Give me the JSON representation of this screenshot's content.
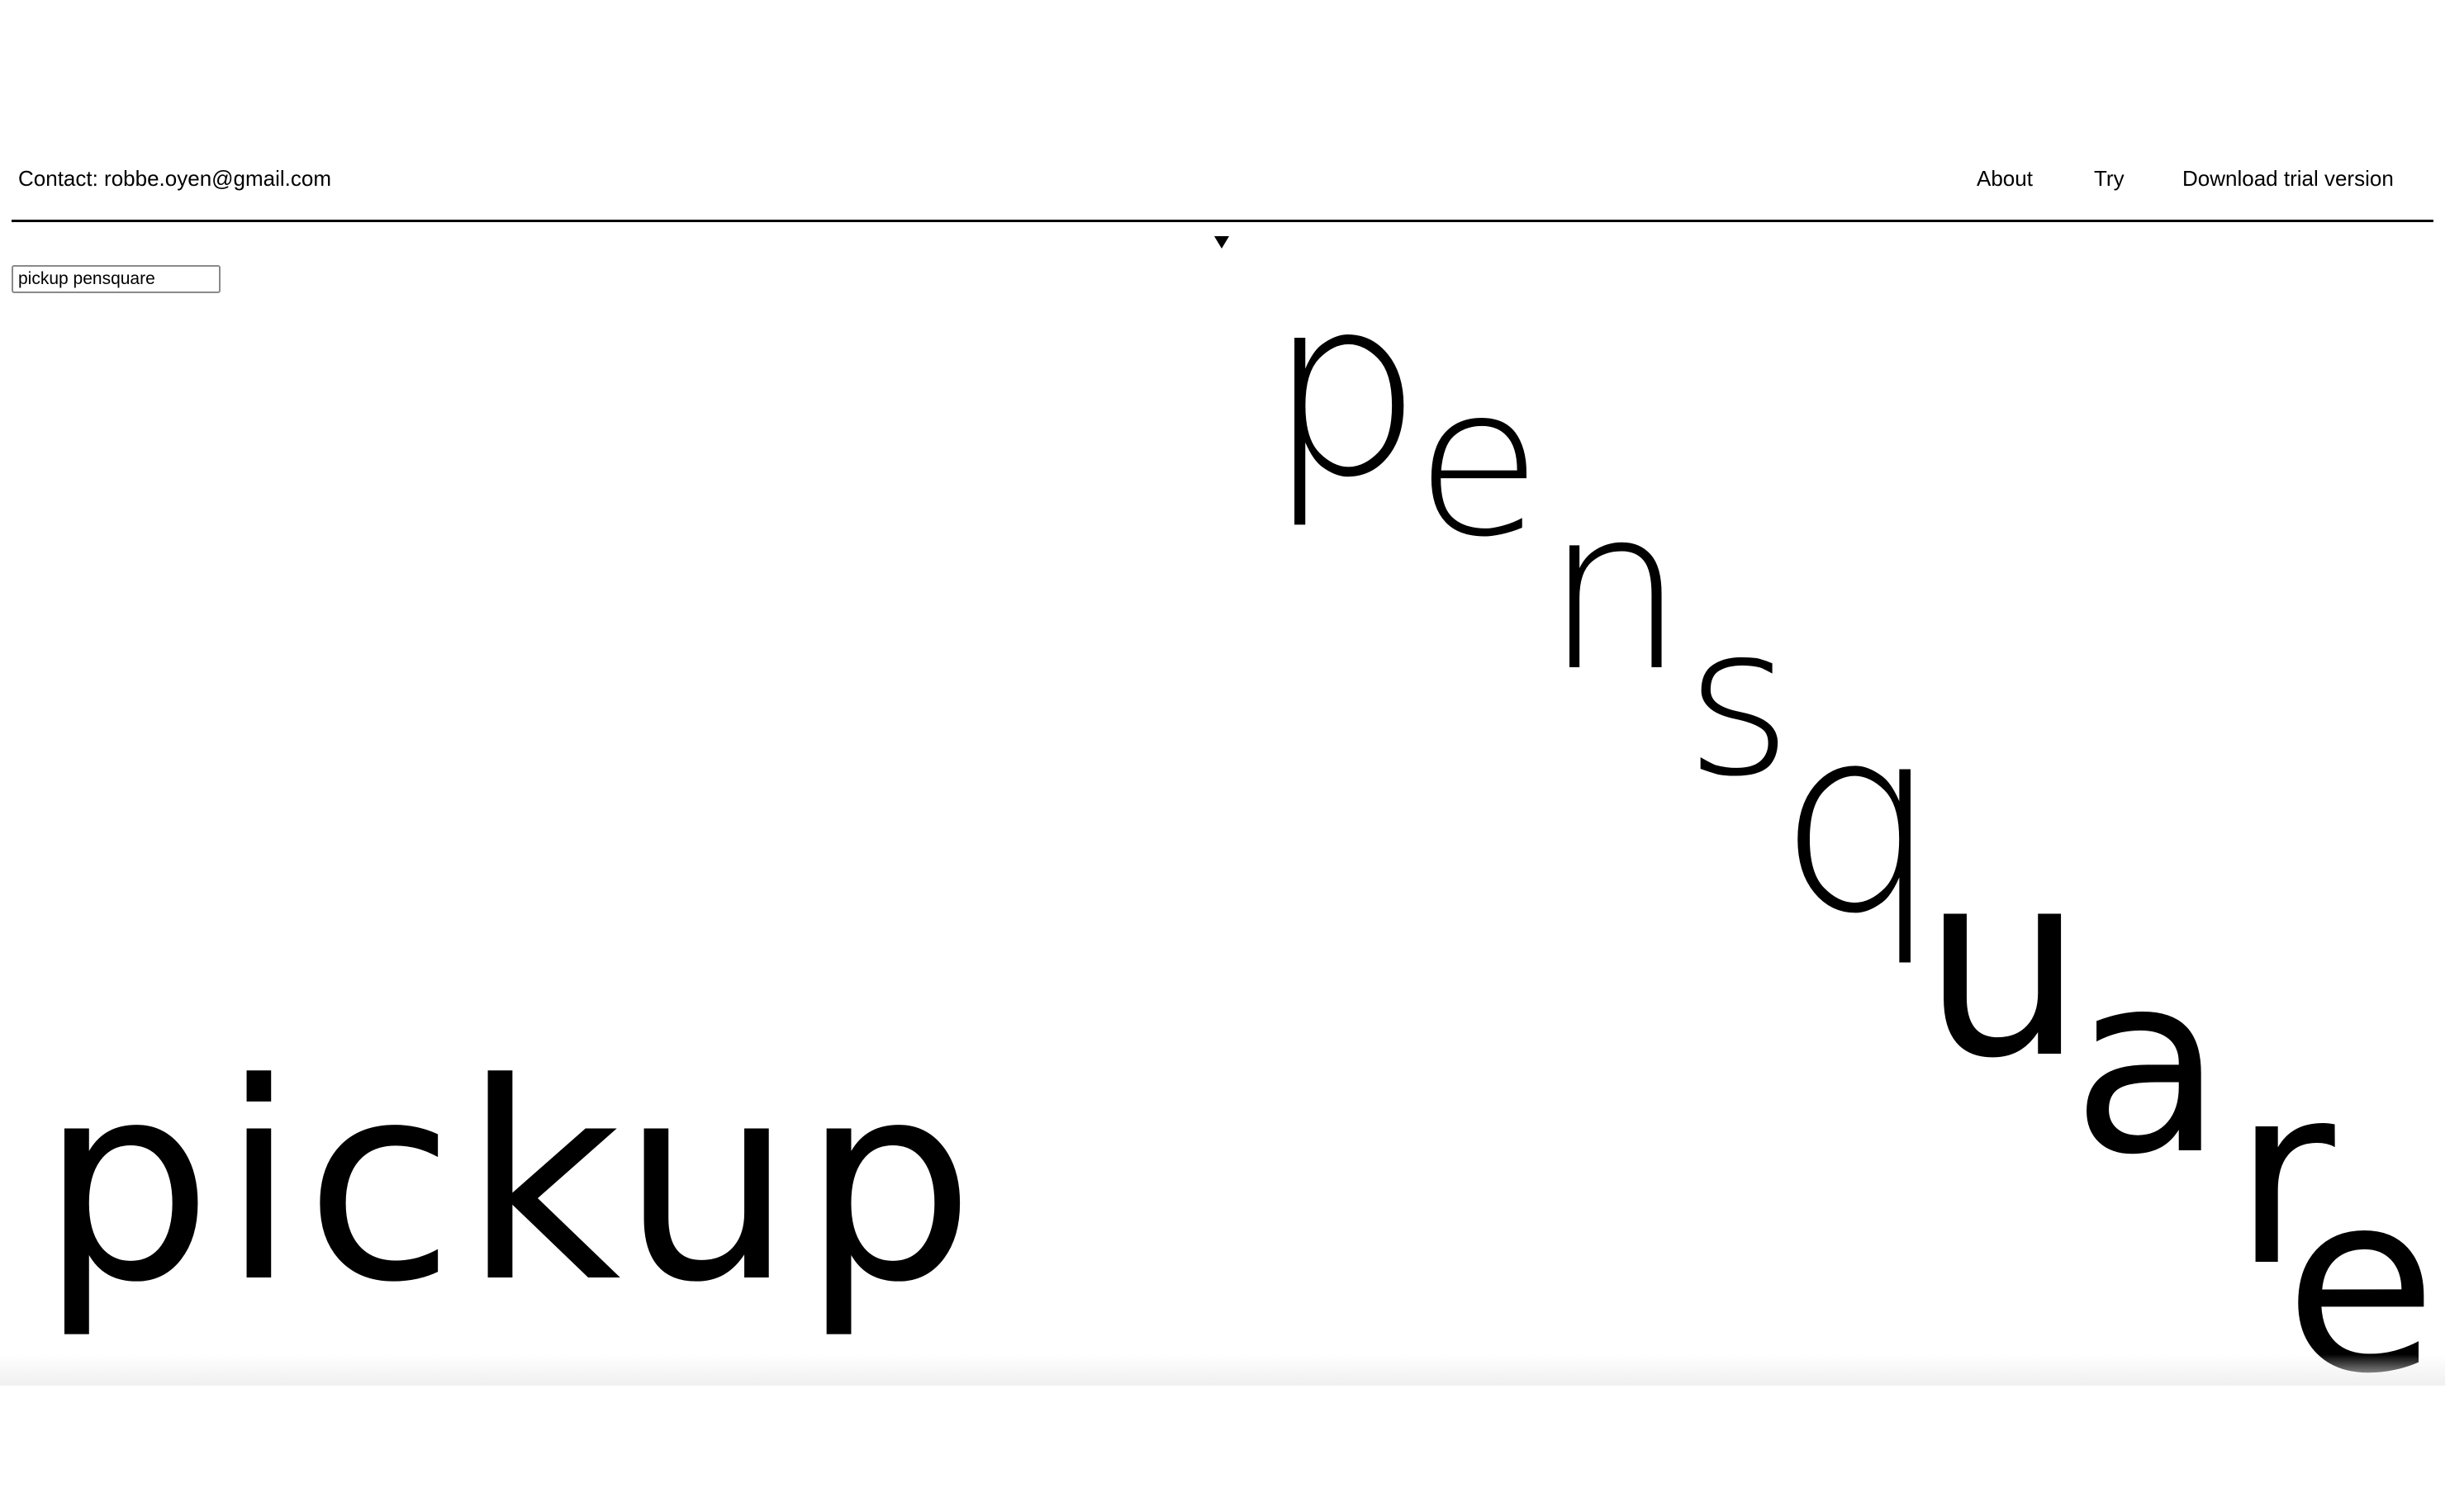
{
  "header": {
    "contact": "Contact: robbe.oyen@gmail.com",
    "nav": {
      "about": "About",
      "try": "Try",
      "download": "Download trial version"
    }
  },
  "input": {
    "value": "pickup pensquare"
  },
  "display": {
    "word_left": "pickup",
    "word_right": "pensquare",
    "letters_right": [
      "p",
      "e",
      "n",
      "s",
      "q",
      "u",
      "a",
      "r",
      "e"
    ]
  },
  "colors": {
    "background": "#ffffff",
    "text": "#000000"
  }
}
